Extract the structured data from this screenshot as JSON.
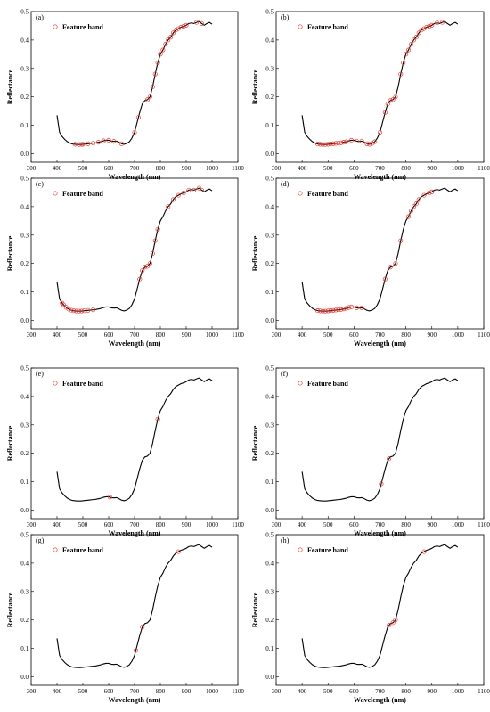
{
  "chart_data": [
    {
      "type": "line",
      "panel_label": "(a)",
      "xlabel": "Wavelength (nm)",
      "ylabel": "Reflectance",
      "xlim": [
        300,
        1100
      ],
      "ylim": [
        -0.03,
        0.5
      ],
      "xticks": [
        300,
        400,
        500,
        600,
        700,
        800,
        900,
        1000,
        1100
      ],
      "yticks": [
        0.0,
        0.1,
        0.2,
        0.3,
        0.4,
        0.5
      ],
      "legend": {
        "label": "Feature band",
        "placement": "top-left"
      },
      "feature_bands": [
        470,
        485,
        495,
        500,
        520,
        540,
        560,
        580,
        600,
        620,
        650,
        700,
        715,
        750,
        760,
        770,
        780,
        790,
        800,
        810,
        820,
        830,
        840,
        850,
        860,
        870,
        880,
        890,
        900,
        940,
        960
      ]
    },
    {
      "type": "line",
      "panel_label": "(b)",
      "xlabel": "Wavelength (nm)",
      "ylabel": "Reflectance",
      "xlim": [
        300,
        1100
      ],
      "ylim": [
        -0.03,
        0.5
      ],
      "xticks": [
        300,
        400,
        500,
        600,
        700,
        800,
        900,
        1000,
        1100
      ],
      "yticks": [
        0.0,
        0.1,
        0.2,
        0.3,
        0.4,
        0.5
      ],
      "legend": {
        "label": "Feature band",
        "placement": "top-left"
      },
      "feature_bands": [
        460,
        470,
        480,
        490,
        500,
        510,
        520,
        530,
        540,
        550,
        560,
        570,
        590,
        610,
        630,
        650,
        660,
        670,
        680,
        700,
        720,
        730,
        740,
        750,
        760,
        780,
        790,
        800,
        810,
        820,
        830,
        840,
        850,
        860,
        870,
        880,
        890,
        900,
        920,
        940
      ]
    },
    {
      "type": "line",
      "panel_label": "(c)",
      "xlabel": "Wavelength (nm)",
      "ylabel": "Reflectance",
      "xlim": [
        300,
        1100
      ],
      "ylim": [
        -0.03,
        0.5
      ],
      "xticks": [
        300,
        400,
        500,
        600,
        700,
        800,
        900,
        1000,
        1100
      ],
      "yticks": [
        0.0,
        0.1,
        0.2,
        0.3,
        0.4,
        0.5
      ],
      "legend": {
        "label": "Feature band",
        "placement": "top-left"
      },
      "feature_bands": [
        420,
        425,
        435,
        445,
        455,
        465,
        475,
        485,
        495,
        505,
        520,
        540,
        720,
        730,
        740,
        750,
        760,
        770,
        780,
        790,
        830,
        850,
        870,
        890,
        910,
        930,
        950,
        960
      ]
    },
    {
      "type": "line",
      "panel_label": "(d)",
      "xlabel": "Wavelength (nm)",
      "ylabel": "Reflectance",
      "xlim": [
        300,
        1100
      ],
      "ylim": [
        -0.03,
        0.5
      ],
      "xticks": [
        300,
        400,
        500,
        600,
        700,
        800,
        900,
        1000,
        1100
      ],
      "yticks": [
        0.0,
        0.1,
        0.2,
        0.3,
        0.4,
        0.5
      ],
      "legend": {
        "label": "Feature band",
        "placement": "top-left"
      },
      "feature_bands": [
        460,
        470,
        480,
        490,
        500,
        510,
        520,
        530,
        540,
        550,
        560,
        570,
        580,
        590,
        610,
        630,
        720,
        740,
        760,
        780,
        810,
        820,
        830,
        840,
        850,
        870,
        890,
        900
      ]
    },
    {
      "type": "line",
      "panel_label": "(e)",
      "xlabel": "Wavelength (nm)",
      "ylabel": "Reflectance",
      "xlim": [
        300,
        1100
      ],
      "ylim": [
        -0.03,
        0.5
      ],
      "xticks": [
        300,
        400,
        500,
        600,
        700,
        800,
        900,
        1000,
        1100
      ],
      "yticks": [
        0.0,
        0.1,
        0.2,
        0.3,
        0.4,
        0.5
      ],
      "legend": {
        "label": "Feature band",
        "placement": "top-left"
      },
      "feature_bands": [
        605,
        790
      ]
    },
    {
      "type": "line",
      "panel_label": "(f)",
      "xlabel": "Wavelength (nm)",
      "ylabel": "Reflectance",
      "xlim": [
        300,
        1100
      ],
      "ylim": [
        -0.03,
        0.5
      ],
      "xticks": [
        300,
        400,
        500,
        600,
        700,
        800,
        900,
        1000,
        1100
      ],
      "yticks": [
        0.0,
        0.1,
        0.2,
        0.3,
        0.4,
        0.5
      ],
      "legend": {
        "label": "Feature band",
        "placement": "top-left"
      },
      "feature_bands": [
        705,
        735
      ]
    },
    {
      "type": "line",
      "panel_label": "(g)",
      "xlabel": "Wavelength (nm)",
      "ylabel": "Reflectance",
      "xlim": [
        300,
        1100
      ],
      "ylim": [
        -0.03,
        0.5
      ],
      "xticks": [
        300,
        400,
        500,
        600,
        700,
        800,
        900,
        1000,
        1100
      ],
      "yticks": [
        0.0,
        0.1,
        0.2,
        0.3,
        0.4,
        0.5
      ],
      "legend": {
        "label": "Feature band",
        "placement": "top-left"
      },
      "feature_bands": [
        705,
        730,
        870
      ]
    },
    {
      "type": "line",
      "panel_label": "(h)",
      "xlabel": "Wavelength (nm)",
      "ylabel": "Reflectance",
      "xlim": [
        300,
        1100
      ],
      "ylim": [
        -0.03,
        0.5
      ],
      "xticks": [
        300,
        400,
        500,
        600,
        700,
        800,
        900,
        1000,
        1100
      ],
      "yticks": [
        0.0,
        0.1,
        0.2,
        0.3,
        0.4,
        0.5
      ],
      "legend": {
        "label": "Feature band",
        "placement": "top-left"
      },
      "feature_bands": [
        735,
        750,
        760,
        870
      ]
    }
  ],
  "spectrum": {
    "x": [
      400,
      410,
      420,
      430,
      440,
      450,
      460,
      470,
      480,
      490,
      500,
      510,
      520,
      530,
      540,
      550,
      560,
      570,
      580,
      590,
      600,
      610,
      620,
      630,
      640,
      650,
      660,
      670,
      680,
      690,
      700,
      710,
      720,
      730,
      740,
      750,
      760,
      770,
      780,
      790,
      800,
      810,
      820,
      830,
      840,
      850,
      860,
      870,
      880,
      890,
      900,
      910,
      920,
      930,
      940,
      950,
      960,
      970,
      980,
      990,
      1000
    ],
    "y": [
      0.135,
      0.075,
      0.06,
      0.05,
      0.042,
      0.037,
      0.034,
      0.033,
      0.032,
      0.032,
      0.033,
      0.034,
      0.035,
      0.036,
      0.037,
      0.038,
      0.04,
      0.042,
      0.045,
      0.047,
      0.047,
      0.044,
      0.043,
      0.044,
      0.04,
      0.035,
      0.033,
      0.036,
      0.042,
      0.055,
      0.075,
      0.11,
      0.145,
      0.175,
      0.187,
      0.19,
      0.2,
      0.235,
      0.28,
      0.32,
      0.35,
      0.365,
      0.385,
      0.4,
      0.41,
      0.425,
      0.435,
      0.44,
      0.445,
      0.448,
      0.452,
      0.458,
      0.46,
      0.458,
      0.462,
      0.465,
      0.458,
      0.452,
      0.458,
      0.462,
      0.456
    ]
  },
  "style": {
    "line_color": "#000000",
    "marker_color": "#e8392f"
  }
}
